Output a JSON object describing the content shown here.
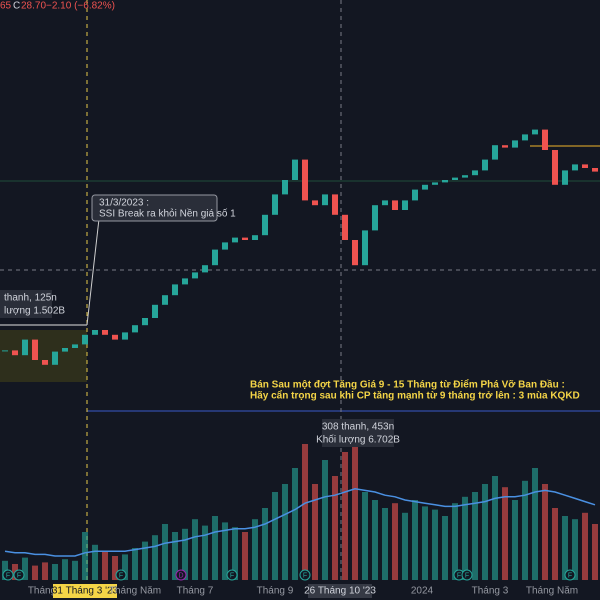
{
  "header": {
    "left_cut": "65",
    "close_label": "C",
    "close": "28.70",
    "change": "−2.10 (−6.82%)"
  },
  "chart_data": {
    "type": "candlestick",
    "up_color": "#26a69a",
    "down_color": "#ef5350",
    "ylim": [
      8,
      43
    ],
    "values": [
      13.8,
      13.4,
      14.7,
      13.0,
      12.6,
      13.7,
      14.0,
      14.3,
      15.1,
      15.5,
      15.1,
      14.7,
      15.3,
      15.9,
      16.5,
      17.6,
      18.4,
      19.3,
      19.8,
      20.3,
      20.9,
      22.2,
      22.8,
      23.2,
      23.0,
      23.4,
      25.1,
      26.8,
      28.0,
      29.7,
      26.3,
      25.9,
      26.8,
      25.1,
      23.0,
      20.9,
      23.8,
      25.9,
      26.3,
      25.5,
      26.3,
      27.2,
      27.6,
      27.8,
      28.0,
      28.2,
      28.4,
      28.8,
      29.7,
      30.9,
      30.7,
      31.3,
      31.8,
      32.2,
      30.5,
      27.6,
      28.8,
      29.3,
      29.0,
      28.7
    ],
    "vlim": [
      0,
      100
    ],
    "volume": [
      12,
      10,
      14,
      9,
      11,
      10,
      13,
      12,
      30,
      22,
      18,
      15,
      16,
      20,
      24,
      28,
      35,
      30,
      32,
      38,
      34,
      40,
      36,
      33,
      30,
      38,
      45,
      55,
      60,
      70,
      85,
      60,
      75,
      65,
      80,
      90,
      55,
      50,
      45,
      48,
      42,
      50,
      46,
      44,
      40,
      48,
      52,
      55,
      60,
      65,
      58,
      50,
      62,
      70,
      60,
      45,
      40,
      38,
      42,
      35
    ],
    "volume_ma_color": "#4a90e2",
    "volume_ma": [
      18,
      17,
      17,
      16,
      16,
      15,
      15,
      15,
      17,
      18,
      18,
      18,
      18,
      19,
      20,
      21,
      23,
      24,
      25,
      27,
      28,
      30,
      31,
      32,
      32,
      33,
      35,
      38,
      41,
      44,
      48,
      50,
      52,
      53,
      55,
      57,
      56,
      55,
      53,
      52,
      50,
      49,
      48,
      47,
      46,
      46,
      47,
      48,
      49,
      51,
      52,
      52,
      53,
      55,
      56,
      55,
      53,
      51,
      49,
      47
    ],
    "annotations": {
      "callout_date": "31/3/2023 :",
      "callout_text": "SSI Break ra khỏi Nền giá  số 1",
      "range1_bars": "thanh, 125n",
      "range1_volume": "lượng 1.502B",
      "range2_bars": "308 thanh, 453n",
      "range2_volume": "Khối lượng 6.702B",
      "note_line1": "Bán Sau một đợt Tăng Giá 9 - 15 Tháng từ Điểm Phá Vỡ  Ban Đầu :",
      "note_line2": "Hãy cẩn trọng sau khi CP tăng mạnh từ 9 tháng trở lên : 3 mùa KQKD"
    },
    "x_labels": [
      "Tháng",
      "31 Tháng 3 '23",
      "Tháng Năm",
      "Tháng 7",
      "Tháng 9",
      "26 Tháng 10 '23",
      "2024",
      "Tháng 3",
      "Tháng Năm"
    ],
    "events": [
      "F",
      "F",
      "F",
      "D",
      "F",
      "F",
      "F",
      "F",
      "F"
    ]
  }
}
